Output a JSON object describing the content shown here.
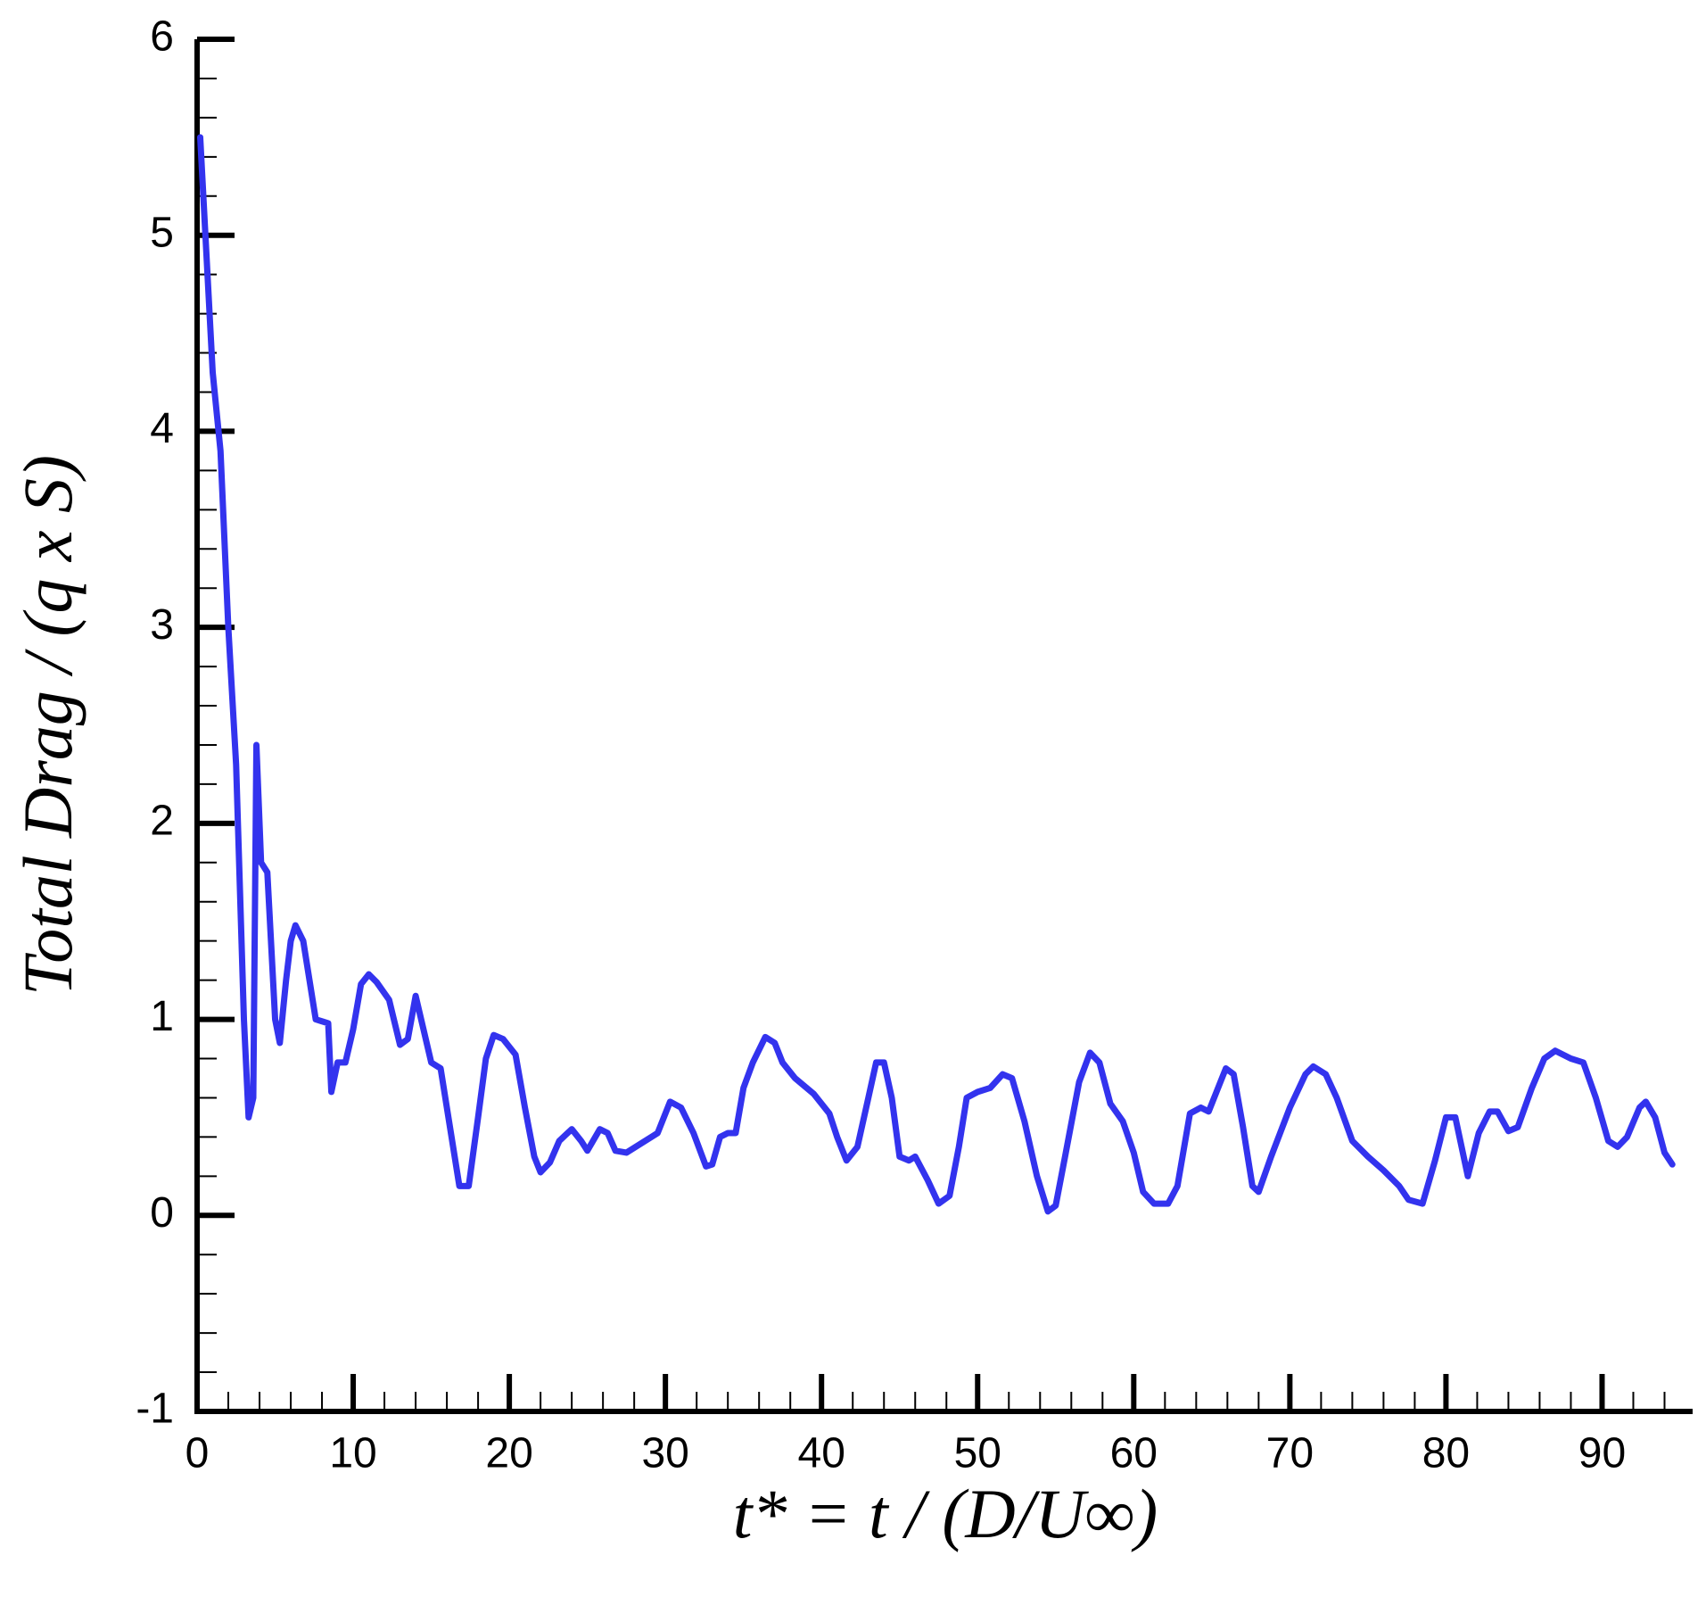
{
  "chart_data": {
    "type": "line",
    "xlabel": "t* = t / (D/U∞)",
    "ylabel": "Total Drag / (q x S)",
    "xlim": [
      0,
      95.8
    ],
    "ylim": [
      -1,
      6
    ],
    "xticks": [
      0,
      10,
      20,
      30,
      40,
      50,
      60,
      70,
      80,
      90
    ],
    "yticks": [
      -1,
      0,
      1,
      2,
      3,
      4,
      5,
      6
    ],
    "x_minor_step": 2,
    "y_minor_step": 0.2,
    "series": [
      {
        "color": "#3333ee",
        "x": [
          0.2,
          1,
          1.5,
          2,
          2.5,
          3,
          3.3,
          3.6,
          3.8,
          4.1,
          4.5,
          5,
          5.3,
          5.7,
          6,
          6.3,
          6.8,
          7.2,
          7.6,
          8,
          8.4,
          8.6,
          9,
          9.5,
          10,
          10.5,
          11,
          11.5,
          12.3,
          13,
          13.5,
          14,
          14.5,
          15,
          15.6,
          16.2,
          16.8,
          17.4,
          18,
          18.5,
          19,
          19.6,
          20.4,
          21,
          21.6,
          22,
          22.6,
          23.2,
          24,
          24.6,
          25,
          25.8,
          26.3,
          26.8,
          27.5,
          28.5,
          29.5,
          30.3,
          31,
          31.8,
          32.6,
          33,
          33.5,
          34,
          34.5,
          35,
          35.6,
          36.4,
          37,
          37.5,
          38.3,
          39.5,
          40.5,
          41,
          41.6,
          42.3,
          43,
          43.5,
          44,
          44.5,
          45,
          45.6,
          46,
          46.8,
          47.5,
          48.2,
          48.8,
          49.3,
          50,
          50.8,
          51.6,
          52.2,
          53,
          53.8,
          54.5,
          55,
          55.6,
          56.5,
          57.2,
          57.8,
          58.5,
          59.3,
          60,
          60.6,
          61.3,
          62.2,
          62.8,
          63.6,
          64.3,
          64.8,
          65.3,
          65.9,
          66.4,
          67,
          67.6,
          68,
          68.8,
          70,
          71,
          71.5,
          72.3,
          73,
          74,
          75,
          76,
          77,
          77.6,
          78.5,
          79.3,
          80,
          80.6,
          81,
          81.4,
          82.1,
          82.8,
          83.3,
          84,
          84.6,
          85.5,
          86.3,
          87,
          88,
          88.8,
          89.6,
          90.4,
          91,
          91.6,
          92.4,
          92.8,
          93.4,
          94,
          94.5
        ],
        "values": [
          5.5,
          4.3,
          3.9,
          3.0,
          2.3,
          1.0,
          0.5,
          0.6,
          2.4,
          1.8,
          1.75,
          1.0,
          0.88,
          1.2,
          1.4,
          1.48,
          1.4,
          1.2,
          1.0,
          0.99,
          0.98,
          0.63,
          0.78,
          0.78,
          0.95,
          1.18,
          1.23,
          1.19,
          1.1,
          0.87,
          0.9,
          1.12,
          0.95,
          0.78,
          0.75,
          0.45,
          0.15,
          0.15,
          0.5,
          0.8,
          0.92,
          0.9,
          0.82,
          0.55,
          0.3,
          0.22,
          0.27,
          0.38,
          0.44,
          0.38,
          0.33,
          0.44,
          0.42,
          0.33,
          0.32,
          0.37,
          0.42,
          0.58,
          0.55,
          0.42,
          0.25,
          0.26,
          0.4,
          0.42,
          0.42,
          0.65,
          0.78,
          0.91,
          0.88,
          0.78,
          0.7,
          0.62,
          0.52,
          0.4,
          0.28,
          0.35,
          0.6,
          0.78,
          0.78,
          0.6,
          0.3,
          0.28,
          0.3,
          0.18,
          0.06,
          0.1,
          0.35,
          0.6,
          0.63,
          0.65,
          0.72,
          0.7,
          0.48,
          0.2,
          0.02,
          0.05,
          0.3,
          0.68,
          0.83,
          0.78,
          0.57,
          0.48,
          0.32,
          0.12,
          0.06,
          0.06,
          0.15,
          0.52,
          0.55,
          0.53,
          0.63,
          0.75,
          0.72,
          0.45,
          0.15,
          0.12,
          0.3,
          0.55,
          0.72,
          0.76,
          0.72,
          0.6,
          0.38,
          0.3,
          0.23,
          0.15,
          0.08,
          0.06,
          0.28,
          0.5,
          0.5,
          0.35,
          0.2,
          0.42,
          0.53,
          0.53,
          0.43,
          0.45,
          0.65,
          0.8,
          0.84,
          0.8,
          0.78,
          0.6,
          0.38,
          0.35,
          0.4,
          0.55,
          0.58,
          0.5,
          0.32,
          0.26
        ]
      }
    ]
  }
}
